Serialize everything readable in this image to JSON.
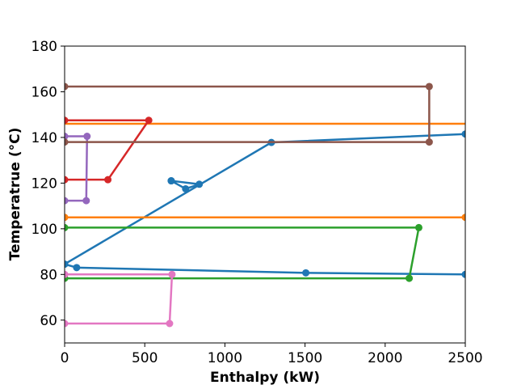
{
  "chart_data": {
    "type": "line",
    "title": "",
    "xlabel": "Enthalpy (kW)",
    "ylabel": "Temperatrue (°C)",
    "xlim": [
      0,
      2500
    ],
    "ylim": [
      50,
      180
    ],
    "xticks": [
      0,
      500,
      1000,
      1500,
      2000,
      2500
    ],
    "yticks": [
      60,
      80,
      100,
      120,
      140,
      160,
      180
    ],
    "grid": false,
    "legend": "none",
    "series": [
      {
        "color": "#1f77b4",
        "markers": true,
        "points": [
          [
            0,
            84.5
          ],
          [
            1290,
            137.8
          ],
          [
            2500,
            141.5
          ]
        ]
      },
      {
        "color": "#1f77b4",
        "markers": true,
        "points": [
          [
            665,
            121
          ],
          [
            840,
            119.5
          ],
          [
            755,
            117.5
          ],
          [
            665,
            121
          ]
        ]
      },
      {
        "color": "#1f77b4",
        "markers": true,
        "points": [
          [
            0,
            84.5
          ],
          [
            75,
            83
          ],
          [
            1505,
            80.7
          ],
          [
            2500,
            80
          ]
        ]
      },
      {
        "color": "#ff7f0e",
        "markers": false,
        "points": [
          [
            0,
            146
          ],
          [
            2500,
            146
          ]
        ]
      },
      {
        "color": "#ff7f0e",
        "markers": true,
        "points": [
          [
            0,
            105
          ],
          [
            2500,
            105
          ]
        ]
      },
      {
        "color": "#2ca02c",
        "markers": true,
        "points": [
          [
            0,
            100.5
          ],
          [
            2210,
            100.5
          ],
          [
            2150,
            78.3
          ],
          [
            0,
            78.3
          ]
        ]
      },
      {
        "color": "#d62728",
        "markers": true,
        "points": [
          [
            0,
            147.5
          ],
          [
            525,
            147.5
          ],
          [
            270,
            121.5
          ],
          [
            0,
            121.5
          ]
        ]
      },
      {
        "color": "#9467bd",
        "markers": true,
        "points": [
          [
            0,
            140.5
          ],
          [
            140,
            140.5
          ],
          [
            135,
            112.3
          ],
          [
            0,
            112.3
          ]
        ]
      },
      {
        "color": "#8c564b",
        "markers": true,
        "points": [
          [
            0,
            162.3
          ],
          [
            2275,
            162.3
          ],
          [
            2275,
            138
          ],
          [
            0,
            138
          ]
        ]
      },
      {
        "color": "#e377c2",
        "markers": true,
        "points": [
          [
            0,
            80
          ],
          [
            670,
            80
          ],
          [
            655,
            58.5
          ],
          [
            0,
            58.5
          ]
        ]
      }
    ]
  }
}
